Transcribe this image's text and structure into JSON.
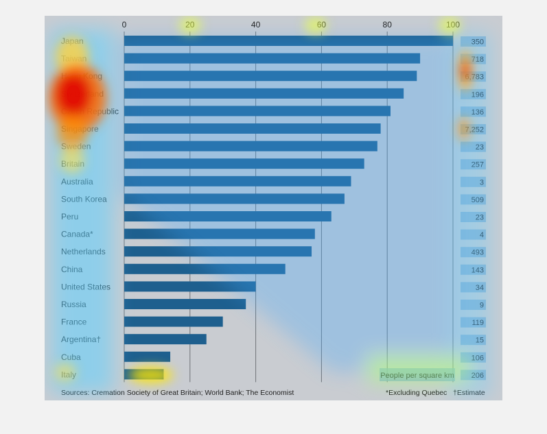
{
  "chart_data": {
    "type": "bar",
    "orientation": "horizontal",
    "xlim": [
      0,
      100
    ],
    "x_ticks": [
      "0",
      "20",
      "40",
      "60",
      "80",
      "100"
    ],
    "categories": [
      "Japan",
      "Taiwan",
      "Hong Kong",
      "Switzerland",
      "Czech Republic",
      "Singapore",
      "Sweden",
      "Britain",
      "Australia",
      "South Korea",
      "Peru",
      "Canada*",
      "Netherlands",
      "China",
      "United States",
      "Russia",
      "France",
      "Argentina†",
      "Cuba",
      "Italy"
    ],
    "values": [
      100,
      90,
      89,
      85,
      81,
      78,
      77,
      73,
      69,
      67,
      63,
      58,
      57,
      49,
      40,
      37,
      30,
      25,
      14,
      12
    ],
    "density_values": [
      "350",
      "718",
      "6,783",
      "196",
      "136",
      "7,252",
      "23",
      "257",
      "3",
      "509",
      "23",
      "4",
      "493",
      "143",
      "34",
      "9",
      "119",
      "15",
      "106",
      "206"
    ],
    "density_label": "People per square km",
    "source": "Sources: Cremation Society of Great Britain; World Bank; The Economist",
    "footnote_left": "*Excluding Quebec",
    "footnote_right": "†Estimate",
    "grid": true,
    "colors": {
      "bar": "#1e5f8e",
      "panel": "#c9ccd1",
      "axis": "#6f7378",
      "density_box": "#7ea9cc"
    },
    "heatmap_overlay": true
  }
}
